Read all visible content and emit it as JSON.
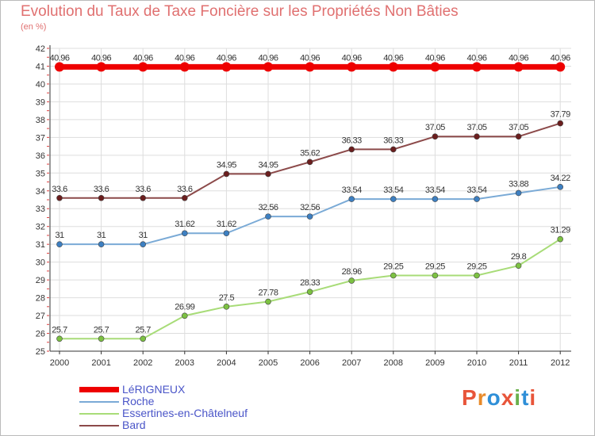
{
  "title": "Evolution du Taux de Taxe Foncière sur les Propriétés Non Bâties",
  "subtitle": "(en %)",
  "logo": {
    "text": "Proxiti",
    "colors": [
      "#e8553a",
      "#e88a2a",
      "#2f8fd8",
      "#e8553a",
      "#6ab04c",
      "#2f8fd8",
      "#e8553a"
    ]
  },
  "chart_data": {
    "type": "line",
    "x": [
      "2000",
      "2001",
      "2002",
      "2003",
      "2004",
      "2005",
      "2006",
      "2007",
      "2008",
      "2009",
      "2010",
      "2011",
      "2012"
    ],
    "ylim": [
      25,
      42
    ],
    "yticks": [
      "25",
      "26",
      "27",
      "28",
      "29",
      "30",
      "31",
      "32",
      "33",
      "34",
      "35",
      "36",
      "37",
      "38",
      "39",
      "40",
      "41",
      "42"
    ],
    "grid": true,
    "legend_position": "bottom-left",
    "series": [
      {
        "name": "LéRIGNEUX",
        "color": "#ee0000",
        "point_color": "#ee0000",
        "width": 7,
        "values": [
          40.96,
          40.96,
          40.96,
          40.96,
          40.96,
          40.96,
          40.96,
          40.96,
          40.96,
          40.96,
          40.96,
          40.96,
          40.96
        ],
        "labels": [
          "40.96",
          "40.96",
          "40.96",
          "40.96",
          "40.96",
          "40.96",
          "40.96",
          "40.96",
          "40.96",
          "40.96",
          "40.96",
          "40.96",
          "40.96"
        ]
      },
      {
        "name": "Roche",
        "color": "#7aaad6",
        "point_color": "#3d7fc1",
        "width": 2,
        "values": [
          31,
          31,
          31,
          31.62,
          31.62,
          32.56,
          32.56,
          33.54,
          33.54,
          33.54,
          33.54,
          33.88,
          34.22
        ],
        "labels": [
          "31",
          "31",
          "31",
          "31.62",
          "31.62",
          "32.56",
          "32.56",
          "33.54",
          "33.54",
          "33.54",
          "33.54",
          "33.88",
          "34.22"
        ]
      },
      {
        "name": "Essertines-en-Châtelneuf",
        "color": "#a8dc78",
        "point_color": "#7cc142",
        "width": 2,
        "values": [
          25.7,
          25.7,
          25.7,
          26.99,
          27.5,
          27.78,
          28.33,
          28.96,
          29.25,
          29.25,
          29.25,
          29.8,
          31.29
        ],
        "labels": [
          "25.7",
          "25.7",
          "25.7",
          "26.99",
          "27.5",
          "27.78",
          "28.33",
          "28.96",
          "29.25",
          "29.25",
          "29.25",
          "29.8",
          "31.29"
        ]
      },
      {
        "name": "Bard",
        "color": "#8c4a4a",
        "point_color": "#6b1e1e",
        "width": 2,
        "values": [
          33.6,
          33.6,
          33.6,
          33.6,
          34.95,
          34.95,
          35.62,
          36.33,
          36.33,
          37.05,
          37.05,
          37.05,
          37.79
        ],
        "labels": [
          "33.6",
          "33.6",
          "33.6",
          "33.6",
          "34.95",
          "34.95",
          "35.62",
          "36.33",
          "36.33",
          "37.05",
          "37.05",
          "37.05",
          "37.79"
        ]
      }
    ]
  }
}
